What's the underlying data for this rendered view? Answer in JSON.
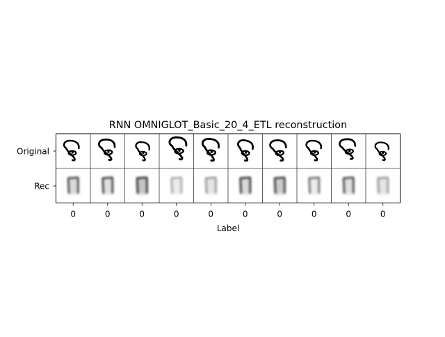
{
  "figure": {
    "title": "RNN OMNIGLOT_Basic_20_4_ETL reconstruction",
    "xlabel": "Label",
    "row_labels": [
      "Original",
      "Rec"
    ],
    "column_labels": [
      "0",
      "0",
      "0",
      "0",
      "0",
      "0",
      "0",
      "0",
      "0",
      "0"
    ]
  },
  "colors": {
    "background": "#ffffff",
    "ink": "#000000",
    "grid": "#3a3a3a"
  }
}
